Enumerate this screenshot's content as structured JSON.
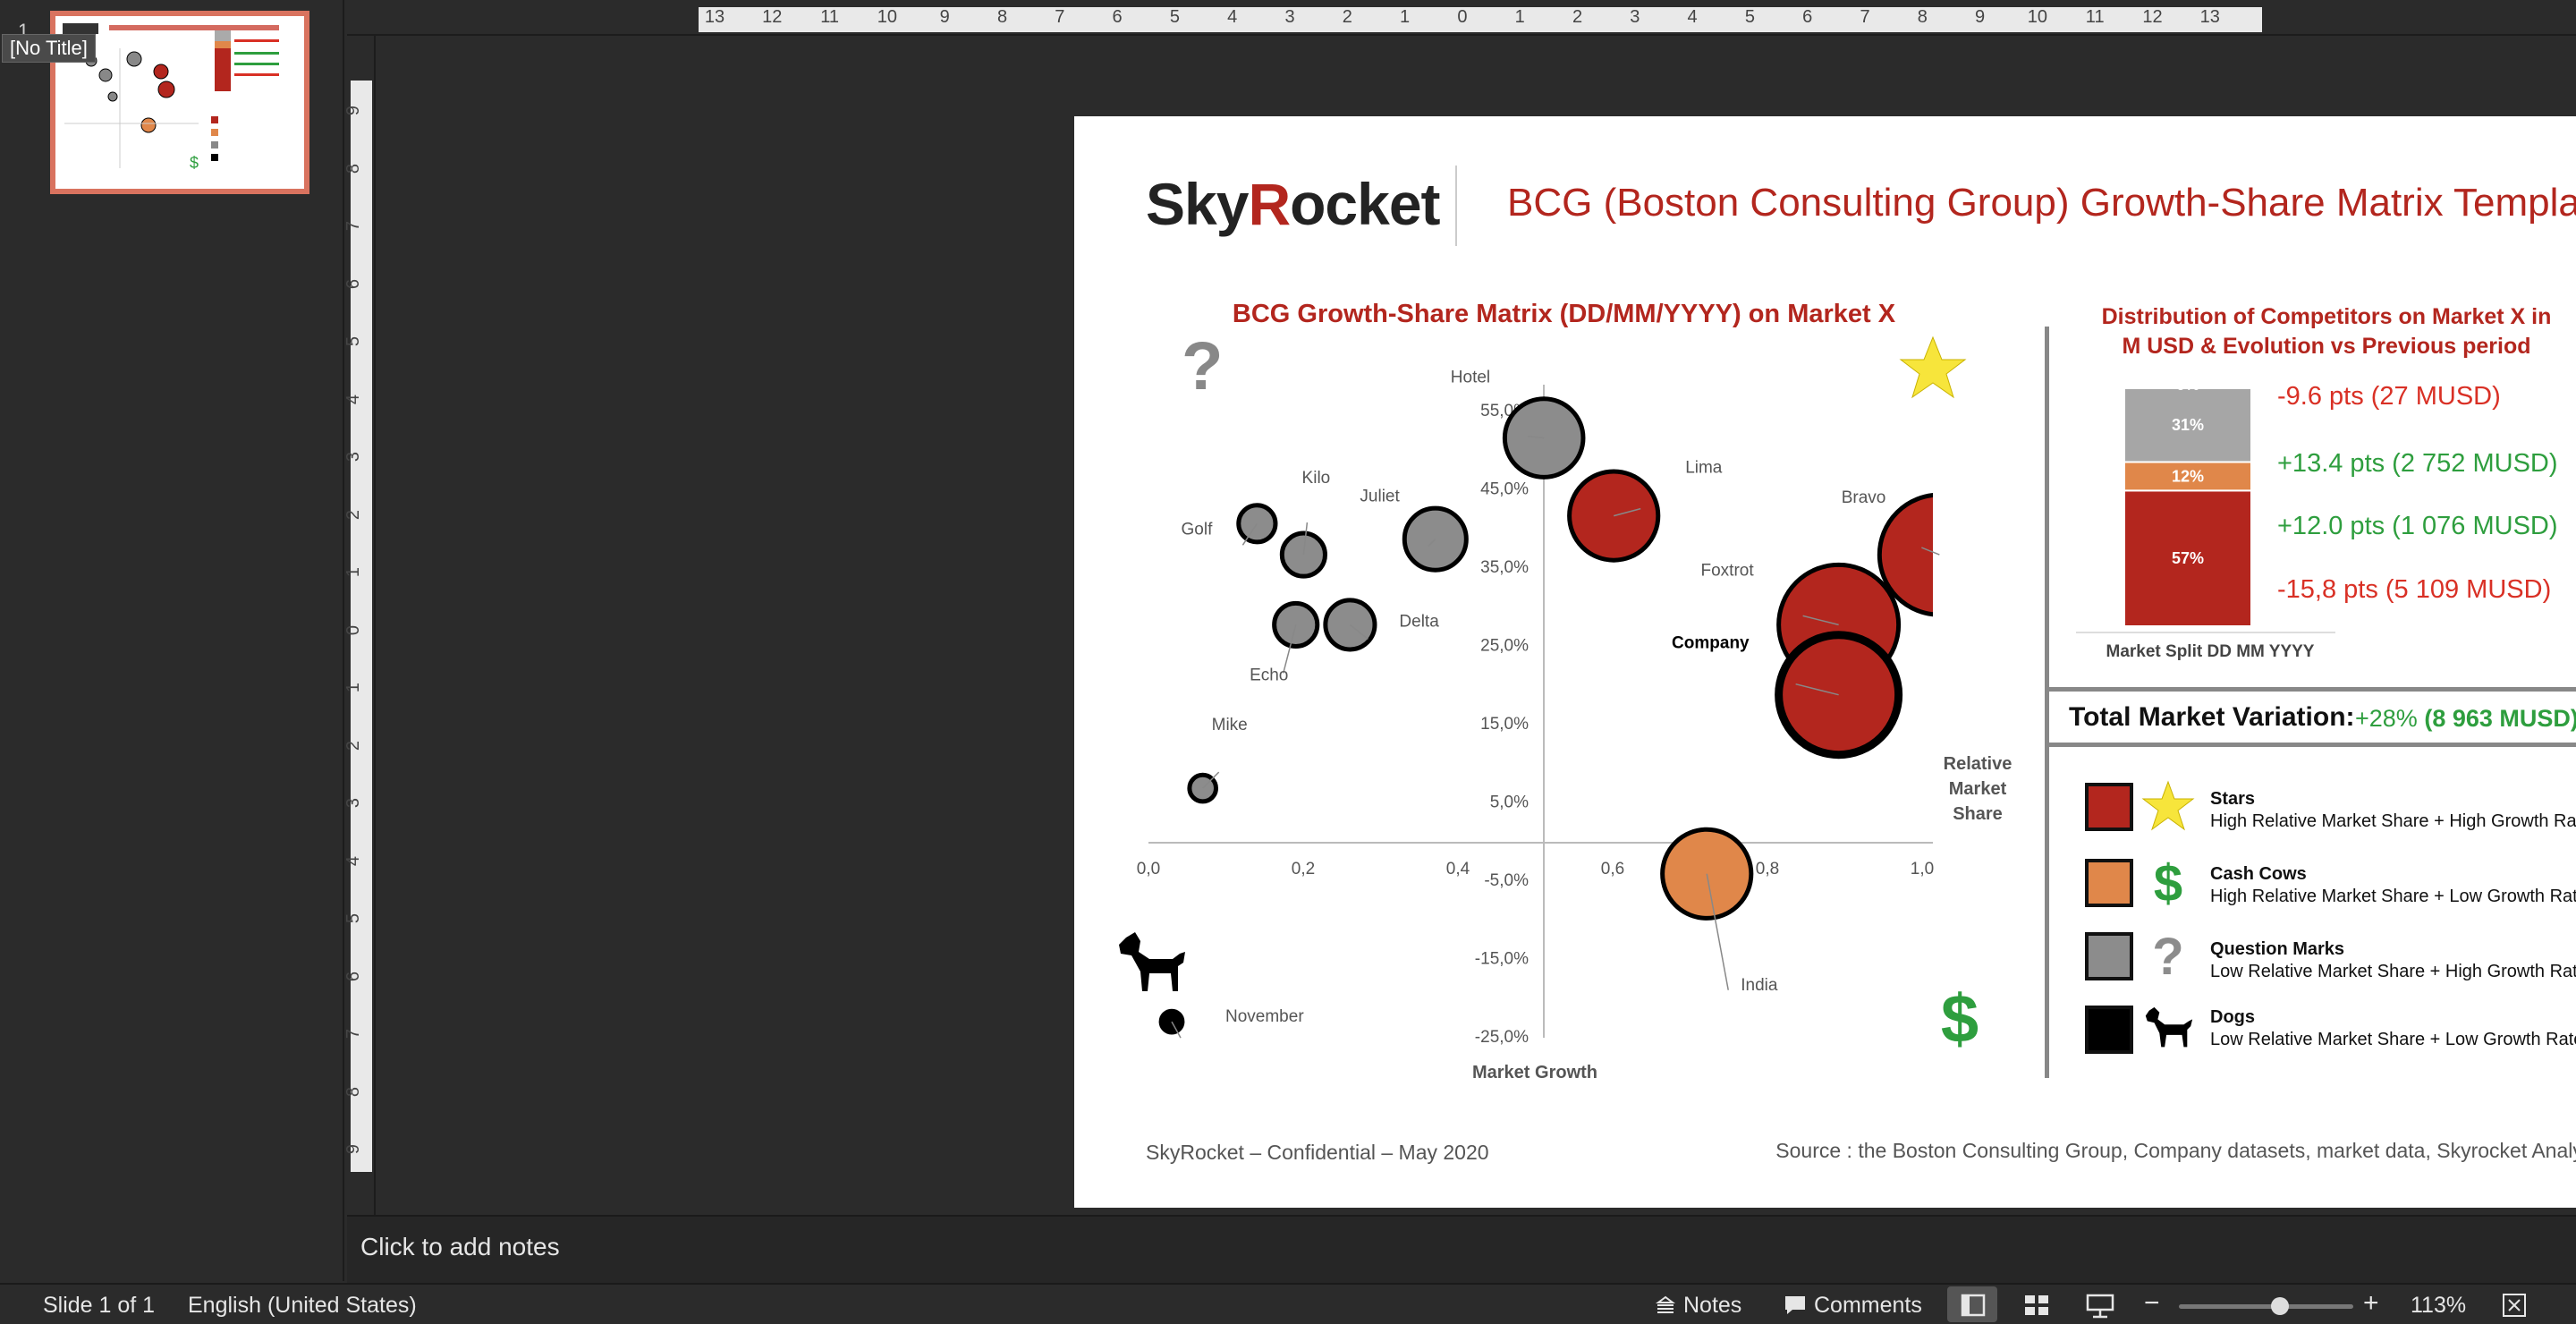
{
  "thumbnails": {
    "number": "1",
    "tooltip": "[No Title]"
  },
  "ruler": {
    "top_ticks": [
      "13",
      "12",
      "11",
      "10",
      "9",
      "8",
      "7",
      "6",
      "5",
      "4",
      "3",
      "2",
      "1",
      "0",
      "1",
      "2",
      "3",
      "4",
      "5",
      "6",
      "7",
      "8",
      "9",
      "10",
      "11",
      "12",
      "13"
    ],
    "left_ticks": [
      "9",
      "8",
      "7",
      "6",
      "5",
      "4",
      "3",
      "2",
      "1",
      "0",
      "1",
      "2",
      "3",
      "4",
      "5",
      "6",
      "7",
      "8",
      "9"
    ]
  },
  "slide": {
    "logo": {
      "part1": "Sky",
      "part2": "R",
      "part3": "ocket"
    },
    "title": "BCG (Boston Consulting Group) Growth-Share Matrix Template",
    "chart_title": "BCG Growth-Share Matrix (DD/MM/YYYY) on Market X",
    "distribution_title_line1": "Distribution of Competitors on Market X in",
    "distribution_title_line2": "M USD & Evolution vs Previous period",
    "evolutions": [
      {
        "text": "-9.6 pts (27 MUSD)",
        "color": "#d93025"
      },
      {
        "text": "+13.4 pts (2 752 MUSD)",
        "color": "#2e9e3e"
      },
      {
        "text": "+12.0 pts (1 076 MUSD)",
        "color": "#2e9e3e"
      },
      {
        "text": "-15,8 pts (5 109 MUSD)",
        "color": "#d93025"
      }
    ],
    "stacked_bar": {
      "label": "Market Split DD MM YYYY",
      "segments": [
        {
          "label": "57%",
          "value": 57,
          "color": "#b3261e"
        },
        {
          "label": "12%",
          "value": 12,
          "color": "#e0874a"
        },
        {
          "label": "31%",
          "value": 31,
          "color": "#a6a6a6"
        },
        {
          "label": "0%",
          "value": 0,
          "color": "#a6a6a6"
        }
      ]
    },
    "total_market": {
      "label": "Total Market Variation:",
      "value_pct": "+28%",
      "value_abs": "(8 963 MUSD)"
    },
    "legend": [
      {
        "name": "Stars",
        "desc": "High Relative Market Share + High Growth Rate",
        "color": "#b3261e",
        "icon": "star-icon"
      },
      {
        "name": "Cash Cows",
        "desc": "High Relative Market Share + Low Growth Rate",
        "color": "#e0874a",
        "icon": "dollar-icon"
      },
      {
        "name": "Question Marks",
        "desc": "Low Relative Market Share + High Growth Rate",
        "color": "#8c8c8c",
        "icon": "question-icon"
      },
      {
        "name": "Dogs",
        "desc": "Low Relative Market Share + Low Growth Rate",
        "color": "#000000",
        "icon": "dog-icon"
      }
    ],
    "quadrant_icons": {
      "question_mark": "?",
      "dollar": "$"
    },
    "footer_left": "SkyRocket – Confidential – May 2020",
    "footer_right": "Source : the Boston Consulting Group, Company datasets, market data, Skyrocket Analysis"
  },
  "chart_data": {
    "type": "scatter",
    "title": "BCG Growth-Share Matrix (DD/MM/YYYY) on Market X",
    "xlabel": "Relative Market Share",
    "ylabel": "Market Growth",
    "xlim": [
      0,
      1
    ],
    "ylim": [
      -0.25,
      0.55
    ],
    "x_ticks": [
      "0,0",
      "0,2",
      "0,4",
      "0,6",
      "0,8",
      "1,0"
    ],
    "y_ticks": [
      "55,0%",
      "45,0%",
      "35,0%",
      "25,0%",
      "15,0%",
      "5,0%",
      "-5,0%",
      "-15,0%",
      "-25,0%"
    ],
    "points": [
      {
        "name": "Hotel",
        "x": 0.51,
        "y": 0.52,
        "size": 3,
        "category": "question"
      },
      {
        "name": "Lima",
        "x": 0.6,
        "y": 0.42,
        "size": 3.5,
        "category": "star"
      },
      {
        "name": "Bravo",
        "x": 1.02,
        "y": 0.37,
        "size": 5,
        "category": "star"
      },
      {
        "name": "Foxtrot",
        "x": 0.89,
        "y": 0.28,
        "size": 5,
        "category": "star"
      },
      {
        "name": "Company",
        "x": 0.89,
        "y": 0.19,
        "size": 5,
        "category": "star",
        "company": true
      },
      {
        "name": "Juliet",
        "x": 0.37,
        "y": 0.39,
        "size": 2.2,
        "category": "question"
      },
      {
        "name": "Kilo",
        "x": 0.2,
        "y": 0.37,
        "size": 1.3,
        "category": "question"
      },
      {
        "name": "Golf",
        "x": 0.14,
        "y": 0.41,
        "size": 1.0,
        "category": "question"
      },
      {
        "name": "Delta",
        "x": 0.26,
        "y": 0.28,
        "size": 1.6,
        "category": "question"
      },
      {
        "name": "Echo",
        "x": 0.19,
        "y": 0.28,
        "size": 1.3,
        "category": "question"
      },
      {
        "name": "Mike",
        "x": 0.07,
        "y": 0.07,
        "size": 0.5,
        "category": "question"
      },
      {
        "name": "India",
        "x": 0.72,
        "y": -0.04,
        "size": 3.5,
        "category": "cow"
      },
      {
        "name": "November",
        "x": 0.03,
        "y": -0.23,
        "size": 0.25,
        "category": "dog"
      }
    ]
  },
  "notes": {
    "placeholder": "Click to add notes"
  },
  "status": {
    "slide": "Slide 1 of 1",
    "language": "English (United States)",
    "notes_btn": "Notes",
    "comments_btn": "Comments",
    "zoom": "113%",
    "zoom_level": 0.58
  }
}
